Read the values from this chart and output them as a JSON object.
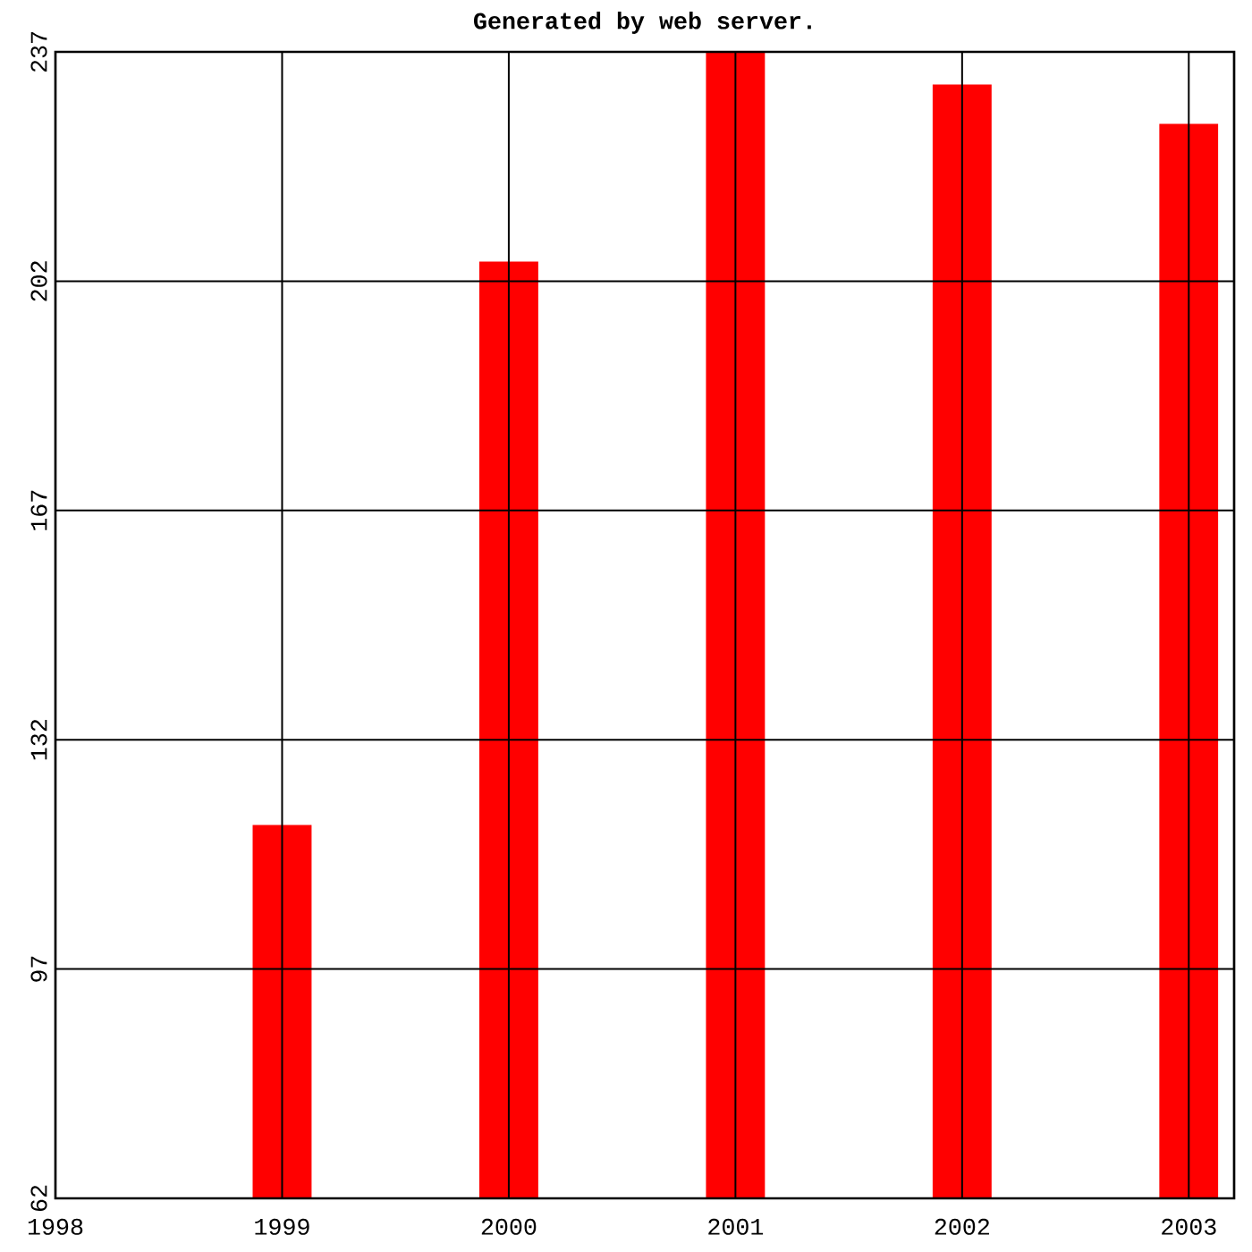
{
  "chart_data": {
    "type": "bar",
    "title": "Generated by web server.",
    "x": [
      1999,
      2000,
      2001,
      2002,
      2003
    ],
    "values": [
      119,
      205,
      237,
      232,
      226
    ],
    "color": "#ff0000",
    "xlim": [
      1998,
      2003.2
    ],
    "xticks": [
      1998,
      1999,
      2000,
      2001,
      2002,
      2003
    ],
    "ylim": [
      62,
      237
    ],
    "yticks": [
      62,
      97,
      132,
      167,
      202,
      237
    ],
    "grid": true
  }
}
